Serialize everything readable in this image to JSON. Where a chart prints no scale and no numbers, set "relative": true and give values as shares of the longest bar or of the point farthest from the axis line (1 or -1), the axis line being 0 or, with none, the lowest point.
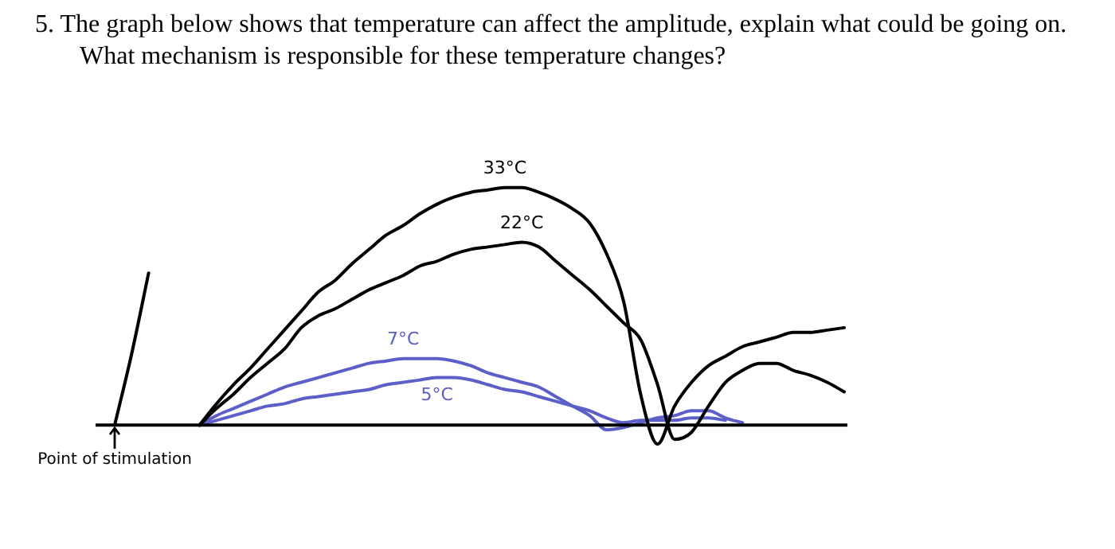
{
  "chart_data": {
    "type": "line",
    "relative": true,
    "title": "5. The graph below shows that temperature can affect the amplitude, explain what could be going on. What mechanism is responsible for these temperature changes?",
    "annotations": [
      "Point of stimulation"
    ],
    "categories": [
      null,
      null,
      null,
      null,
      null,
      null,
      null,
      null,
      null,
      null,
      null,
      null,
      null,
      null,
      null,
      null,
      null,
      null,
      null,
      null,
      null,
      null,
      null,
      null,
      null,
      null,
      null,
      null,
      null,
      null,
      null,
      null,
      null,
      null,
      null,
      null,
      null,
      null,
      null,
      null,
      null,
      null,
      null,
      null
    ],
    "legend": false,
    "marker": "none",
    "line_style": "solid",
    "series": [
      {
        "color": "#000000",
        "values": [
          0,
          0.3,
          0.64,
          null,
          null,
          null,
          null,
          null,
          null,
          null,
          null,
          null,
          null,
          null,
          null,
          null,
          null,
          null,
          null,
          null,
          null,
          null,
          null,
          null,
          null,
          null,
          null,
          null,
          null,
          null,
          null,
          null,
          null,
          null,
          null,
          null,
          null,
          null,
          null,
          null,
          null,
          null,
          null,
          null
        ]
      },
      {
        "name": "33°C",
        "color": "#000000",
        "values": [
          null,
          null,
          null,
          null,
          null,
          0,
          0.09,
          0.17,
          0.24,
          0.32,
          0.4,
          0.48,
          0.56,
          0.61,
          0.68,
          0.74,
          0.8,
          0.84,
          0.89,
          0.93,
          0.96,
          0.98,
          0.99,
          1,
          1,
          0.98,
          0.95,
          0.91,
          0.85,
          0.72,
          0.52,
          0.13,
          -0.08,
          0.08,
          0.18,
          0.25,
          0.29,
          0.33,
          0.35,
          0.37,
          0.39,
          0.39,
          0.4,
          0.41
        ]
      },
      {
        "name": "22°C",
        "color": "#000000",
        "values": [
          null,
          null,
          null,
          null,
          null,
          0,
          0.07,
          0.13,
          0.2,
          0.26,
          0.32,
          0.41,
          0.46,
          0.49,
          0.53,
          0.57,
          0.6,
          0.63,
          0.67,
          0.69,
          0.72,
          0.74,
          0.75,
          0.76,
          0.77,
          0.75,
          0.69,
          0.63,
          0.57,
          0.5,
          0.43,
          0.36,
          0.17,
          -0.06,
          -0.03,
          0.08,
          0.18,
          0.23,
          0.26,
          0.26,
          0.23,
          0.21,
          0.18,
          0.14
        ]
      },
      {
        "name": "7°C",
        "color": "#5b5fc7",
        "values": [
          null,
          null,
          null,
          null,
          null,
          0,
          0.04,
          0.07,
          0.1,
          0.13,
          0.16,
          0.18,
          0.2,
          0.22,
          0.24,
          0.26,
          0.27,
          0.28,
          0.28,
          0.28,
          0.27,
          0.25,
          0.22,
          0.2,
          0.18,
          0.16,
          0.12,
          0.08,
          0.04,
          -0.02,
          -0.01,
          0.01,
          0.03,
          0.04,
          0.06,
          0.06,
          0.03,
          0.01,
          null,
          null,
          null,
          null,
          null,
          null
        ]
      },
      {
        "name": "5°C",
        "color": "#5b5fc7",
        "values": [
          null,
          null,
          null,
          null,
          null,
          0,
          0.02,
          0.04,
          0.06,
          0.08,
          0.09,
          0.11,
          0.12,
          0.13,
          0.14,
          0.15,
          0.17,
          0.18,
          0.19,
          0.2,
          0.2,
          0.19,
          0.17,
          0.15,
          0.14,
          0.12,
          0.1,
          0.08,
          0.06,
          0.03,
          0.01,
          0.02,
          0.02,
          0.02,
          0.03,
          0.03,
          0.02,
          null,
          null,
          null,
          null,
          null,
          null,
          null
        ]
      }
    ]
  }
}
